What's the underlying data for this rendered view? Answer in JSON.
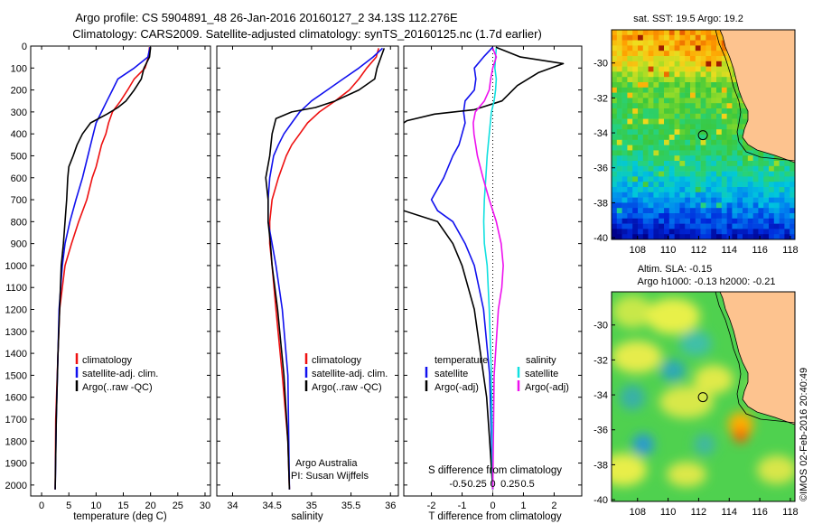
{
  "header": {
    "line1": "Argo profile: CS 5904891_48 26-Jan-2016 20160127_2 34.13S 112.276E",
    "line2": "Climatology: CARS2009. Satellite-adjusted climatology: synTS_20160125.nc (1.7d earlier)"
  },
  "colors": {
    "climatology": "#ee1111",
    "satellite": "#1111ee",
    "argo": "#000000",
    "salinity_satellite": "#11e0e0",
    "salinity_argo": "#ee11ee",
    "land": "#fdc38f"
  },
  "chart_data": [
    {
      "type": "line",
      "xlabel": "temperature (deg C)",
      "xlim": [
        -2,
        31
      ],
      "xticks": [
        0,
        5,
        10,
        15,
        20,
        25,
        30
      ],
      "ylim": [
        0,
        2050
      ],
      "yticks": [
        0,
        100,
        200,
        300,
        400,
        500,
        600,
        700,
        800,
        900,
        1000,
        1100,
        1200,
        1300,
        1400,
        1500,
        1600,
        1700,
        1800,
        1900,
        2000
      ],
      "legend": [
        "climatology",
        "satellite-adj. clim.",
        "Argo(..raw -QC)"
      ],
      "series": [
        {
          "name": "climatology",
          "color": "#ee1111",
          "x": [
            19.8,
            19.6,
            19.0,
            17.0,
            15.8,
            14.5,
            13.0,
            12.3,
            11.8,
            11.0,
            10.5,
            10.0,
            9.3,
            8.3,
            6.8,
            5.5,
            4.3,
            3.8,
            3.3,
            3.0,
            2.6,
            2.5
          ],
          "y": [
            5,
            50,
            100,
            150,
            200,
            250,
            300,
            350,
            400,
            450,
            500,
            550,
            600,
            700,
            800,
            900,
            1000,
            1100,
            1200,
            1400,
            1700,
            2020
          ]
        },
        {
          "name": "satellite-adj. clim.",
          "color": "#1111ee",
          "x": [
            19.9,
            19.5,
            17.0,
            14.0,
            13.0,
            12.0,
            11.0,
            10.0,
            9.5,
            9.0,
            8.5,
            7.5,
            6.3,
            5.2,
            4.3,
            3.8,
            3.5,
            3.2,
            3.0,
            2.7,
            2.5
          ],
          "y": [
            5,
            50,
            100,
            150,
            200,
            250,
            300,
            350,
            400,
            450,
            500,
            600,
            700,
            800,
            900,
            1000,
            1100,
            1200,
            1400,
            1700,
            2020
          ]
        },
        {
          "name": "Argo(..raw -QC)",
          "color": "#000000",
          "x": [
            20.0,
            19.8,
            18.8,
            18.3,
            17.0,
            15.5,
            14.0,
            12.0,
            9.0,
            7.5,
            6.5,
            5.8,
            5.0,
            4.8,
            4.6,
            4.3,
            4.0,
            3.6,
            3.3,
            3.0,
            2.7,
            2.5
          ],
          "y": [
            5,
            50,
            100,
            150,
            200,
            250,
            280,
            310,
            350,
            400,
            450,
            500,
            550,
            600,
            700,
            800,
            900,
            1000,
            1200,
            1400,
            1700,
            2020
          ]
        }
      ]
    },
    {
      "type": "line",
      "xlabel": "salinity",
      "xlim": [
        33.8,
        36.1
      ],
      "xticks": [
        34,
        34.5,
        35,
        35.5,
        36
      ],
      "xticklabels": [
        "34",
        "34.5",
        "35",
        "35.5",
        "36"
      ],
      "ylim": [
        0,
        2050
      ],
      "legend": [
        "climatology",
        "satellite-adj. clim.",
        "Argo(..raw -QC)"
      ],
      "annotations": [
        "Argo Australia",
        "PI: Susan Wijffels"
      ],
      "series": [
        {
          "name": "climatology",
          "color": "#ee1111",
          "x": [
            35.85,
            35.82,
            35.7,
            35.6,
            35.48,
            35.3,
            35.1,
            34.95,
            34.85,
            34.75,
            34.68,
            34.58,
            34.5,
            34.47,
            34.47,
            34.5,
            34.55,
            34.63,
            34.7,
            34.72
          ],
          "y": [
            10,
            50,
            100,
            150,
            200,
            250,
            300,
            350,
            400,
            450,
            500,
            600,
            700,
            800,
            900,
            1000,
            1200,
            1500,
            1800,
            2020
          ]
        },
        {
          "name": "satellite-adj. clim.",
          "color": "#1111ee",
          "x": [
            35.9,
            35.78,
            35.6,
            35.4,
            35.2,
            35.0,
            34.85,
            34.75,
            34.65,
            34.58,
            34.52,
            34.47,
            34.45,
            34.45,
            34.5,
            34.55,
            34.63,
            34.7,
            34.72
          ],
          "y": [
            10,
            50,
            100,
            150,
            200,
            250,
            300,
            350,
            400,
            450,
            500,
            600,
            700,
            800,
            900,
            1000,
            1200,
            1500,
            2020
          ]
        },
        {
          "name": "Argo(..raw -QC)",
          "color": "#000000",
          "x": [
            35.92,
            35.88,
            35.83,
            35.8,
            35.6,
            35.3,
            35.05,
            34.75,
            34.55,
            34.5,
            34.47,
            34.42,
            34.45,
            34.45,
            34.48,
            34.5,
            34.57,
            34.65,
            34.7,
            34.72
          ],
          "y": [
            10,
            50,
            100,
            150,
            200,
            250,
            280,
            300,
            330,
            400,
            500,
            600,
            700,
            800,
            900,
            1000,
            1200,
            1500,
            1800,
            2020
          ]
        }
      ]
    },
    {
      "type": "line",
      "xlabel": "T difference from climatology",
      "xlabel_top": "S difference from climatology",
      "xlim": [
        -2.9,
        2.9
      ],
      "xticks": [
        -2,
        -1,
        0,
        1,
        2
      ],
      "xticks_salinity": [
        -0.5,
        -0.25,
        0,
        0.25,
        0.5
      ],
      "xticklabels_salinity": [
        "-0.5",
        "-0.25",
        "0",
        "0.25",
        "0.5"
      ],
      "ylim": [
        0,
        2050
      ],
      "legend_temperature": {
        "title": "temperature",
        "items": [
          "satellite",
          "Argo(-adj)"
        ]
      },
      "legend_salinity": {
        "title": "salinity",
        "items": [
          "satellite",
          "Argo(-adj)"
        ]
      },
      "series": [
        {
          "name": "T satellite",
          "color": "#1111ee",
          "x": [
            0.0,
            -0.3,
            -0.6,
            -0.55,
            -0.6,
            -0.9,
            -0.95,
            -0.9,
            -1.0,
            -1.1,
            -1.3,
            -1.6,
            -2.0,
            -1.8,
            -1.3,
            -0.9,
            -0.6,
            -0.3,
            -0.1,
            0.0
          ],
          "y": [
            5,
            50,
            100,
            150,
            200,
            250,
            300,
            350,
            400,
            450,
            500,
            600,
            700,
            750,
            800,
            900,
            1000,
            1200,
            1500,
            2020
          ]
        },
        {
          "name": "T Argo(-adj)",
          "color": "#000000",
          "x": [
            0.1,
            0.9,
            2.3,
            1.5,
            0.8,
            0.3,
            -0.6,
            -1.9,
            -2.8,
            -3.4,
            -3.3,
            -3.1,
            -3.2,
            -3.4,
            -2.9,
            -1.8,
            -1.3,
            -1.0,
            -0.8,
            -0.6,
            -0.4,
            -0.2,
            -0.1,
            0.0
          ],
          "y": [
            5,
            50,
            80,
            120,
            180,
            250,
            290,
            310,
            340,
            400,
            450,
            500,
            600,
            700,
            750,
            800,
            900,
            1000,
            1100,
            1200,
            1400,
            1600,
            1800,
            2020
          ]
        },
        {
          "name": "S satellite",
          "color": "#11e0e0",
          "x": [
            0.05,
            0.04,
            0.03,
            0.05,
            0.04,
            0.02,
            -0.02,
            -0.05,
            -0.08,
            -0.1,
            -0.12,
            -0.13,
            -0.12,
            -0.08,
            -0.05,
            -0.02,
            0.0
          ],
          "y": [
            10,
            50,
            100,
            150,
            200,
            250,
            300,
            400,
            500,
            600,
            700,
            800,
            900,
            1000,
            1200,
            1500,
            2020
          ]
        },
        {
          "name": "S Argo(-adj)",
          "color": "#ee11ee",
          "x": [
            0.0,
            0.05,
            0.0,
            -0.03,
            -0.05,
            -0.12,
            -0.25,
            -0.28,
            -0.27,
            -0.22,
            -0.14,
            -0.05,
            0.05,
            0.12,
            0.15,
            0.13,
            0.08,
            0.02,
            0.0
          ],
          "y": [
            10,
            50,
            100,
            150,
            200,
            250,
            300,
            350,
            400,
            500,
            600,
            700,
            800,
            900,
            1000,
            1100,
            1200,
            1500,
            2020
          ]
        }
      ]
    },
    {
      "type": "heatmap",
      "title": "sat. SST: 19.5  Argo: 19.2",
      "xlim": [
        106.3,
        118.3
      ],
      "ylim": [
        -40.1,
        -28.1
      ],
      "xticks": [
        108,
        110,
        112,
        114,
        116,
        118
      ],
      "yticks": [
        -40,
        -38,
        -36,
        -34,
        -32,
        -30
      ],
      "marker": {
        "lon": 112.276,
        "lat": -34.13
      }
    },
    {
      "type": "heatmap",
      "title": "Altim. SLA: -0.15",
      "subtitle": "Argo h1000: -0.13 h2000: -0.21",
      "xlim": [
        106.3,
        118.3
      ],
      "ylim": [
        -40.1,
        -28.1
      ],
      "xticks": [
        108,
        110,
        112,
        114,
        116,
        118
      ],
      "yticks": [
        -40,
        -38,
        -36,
        -34,
        -32,
        -30
      ],
      "marker": {
        "lon": 112.276,
        "lat": -34.13
      }
    }
  ],
  "side_label": "©IMOS 02-Feb-2016 20:40:49"
}
